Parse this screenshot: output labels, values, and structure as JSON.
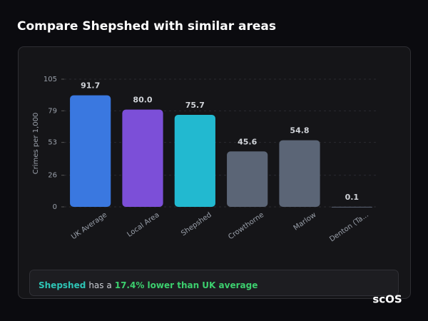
{
  "title": "Compare Shepshed with similar areas",
  "chart_data": {
    "type": "bar",
    "categories": [
      "UK Average",
      "Local Area",
      "Shepshed",
      "Crowthorne",
      "Marlow",
      "Denton (Ta..."
    ],
    "values": [
      91.7,
      80.0,
      75.7,
      45.6,
      54.8,
      0.1
    ],
    "value_labels": [
      "91.7",
      "80.0",
      "75.7",
      "45.6",
      "54.8",
      "0.1"
    ],
    "colors": [
      "#3a78e0",
      "#7c4fd8",
      "#22b9d0",
      "#5b6576",
      "#5b6576",
      "#5b6576"
    ],
    "y_label": "Crimes per 1,000",
    "ylim": [
      0,
      105
    ],
    "yticks": [
      0,
      26,
      53,
      79,
      105
    ],
    "grid": true
  },
  "summary": {
    "place": "Shepshed",
    "text": "has a",
    "highlight": "17.4% lower than UK average"
  },
  "logo": "scOS"
}
